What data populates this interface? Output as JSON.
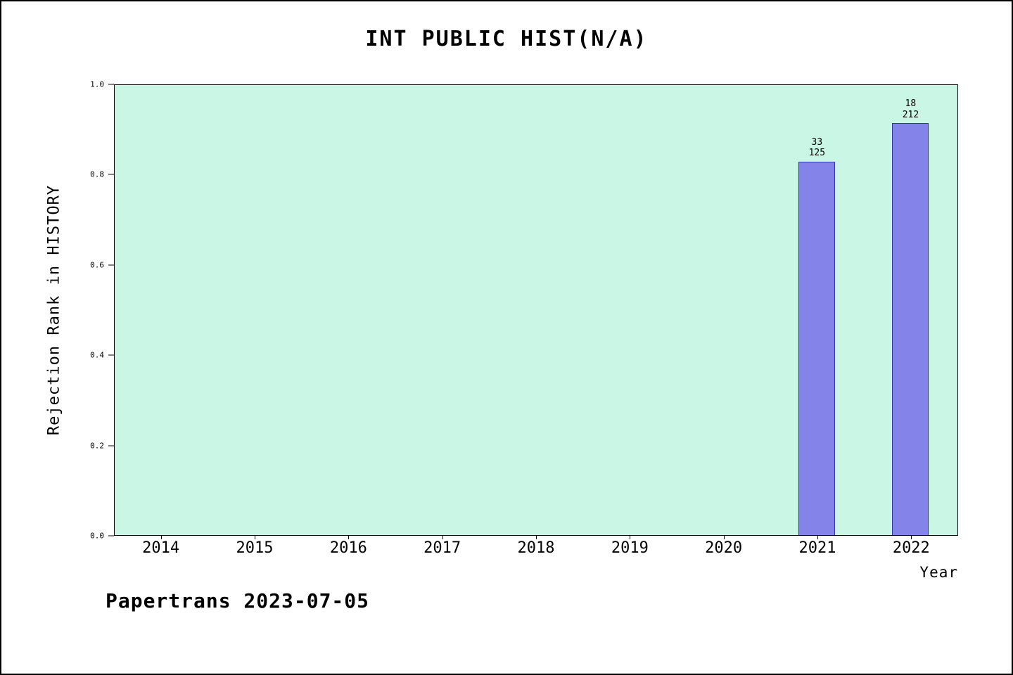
{
  "footer": {
    "text": "Papertrans 2023-07-05"
  },
  "chart_data": {
    "type": "bar",
    "title": "INT PUBLIC HIST(N/A)",
    "xlabel": "Year",
    "ylabel": "Rejection Rank in HISTORY",
    "categories": [
      "2014",
      "2015",
      "2016",
      "2017",
      "2018",
      "2019",
      "2020",
      "2021",
      "2022"
    ],
    "values": [
      null,
      null,
      null,
      null,
      null,
      null,
      null,
      0.83,
      0.915
    ],
    "bar_annotations": {
      "2021": [
        "33",
        "125"
      ],
      "2022": [
        "18",
        "212"
      ]
    },
    "ylim": [
      0.0,
      1.0
    ],
    "yticks": [
      "0.0",
      "0.2",
      "0.4",
      "0.6",
      "0.8",
      "1.0"
    ],
    "grid": false,
    "legend": "none",
    "colors": {
      "plot_bg": "#c9f6e5",
      "bar_fill": "#8383ea",
      "bar_border": "#3333aa",
      "text": "#000000"
    }
  }
}
